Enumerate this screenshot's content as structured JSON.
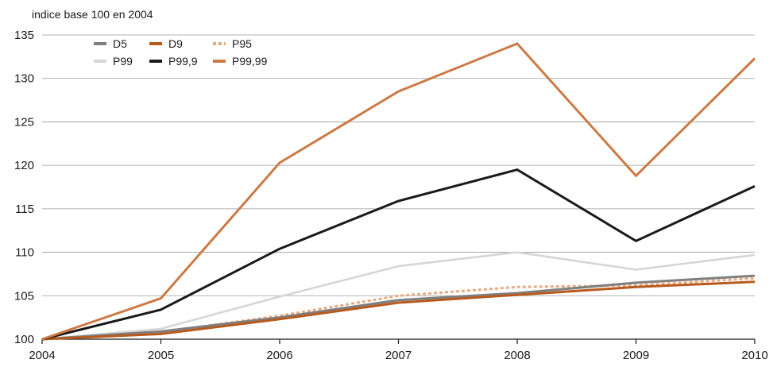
{
  "chart_data": {
    "type": "line",
    "ylabel": "indice base 100 en 2004",
    "x": [
      "2004",
      "2005",
      "2006",
      "2007",
      "2008",
      "2009",
      "2010"
    ],
    "ylim": [
      100,
      135
    ],
    "yticks": [
      100,
      105,
      110,
      115,
      120,
      125,
      130,
      135
    ],
    "grid": "horizontal",
    "legend_position": "top-left",
    "series": [
      {
        "name": "D5",
        "color": "#7f7f7f",
        "dash": "solid",
        "values": [
          100,
          100.9,
          102.5,
          104.5,
          105.3,
          106.5,
          107.3
        ]
      },
      {
        "name": "D9",
        "color": "#b85a1e",
        "dash": "solid",
        "values": [
          100,
          100.6,
          102.3,
          104.2,
          105.1,
          106.0,
          106.6
        ]
      },
      {
        "name": "P95",
        "color": "#e8aa82",
        "dash": "dashed",
        "values": [
          100,
          100.8,
          102.7,
          105.0,
          106.0,
          106.2,
          107.0
        ]
      },
      {
        "name": "P99",
        "color": "#d6d6d6",
        "dash": "solid",
        "values": [
          100,
          101.2,
          104.9,
          108.4,
          110.0,
          108.0,
          109.7
        ]
      },
      {
        "name": "P99,9",
        "color": "#1a1a1a",
        "dash": "solid",
        "values": [
          100,
          103.4,
          110.4,
          115.9,
          119.5,
          111.3,
          117.6
        ]
      },
      {
        "name": "P99,99",
        "color": "#cc7a45",
        "dash": "solid",
        "values": [
          100,
          104.7,
          120.3,
          128.5,
          134.0,
          118.8,
          132.3
        ]
      }
    ]
  }
}
